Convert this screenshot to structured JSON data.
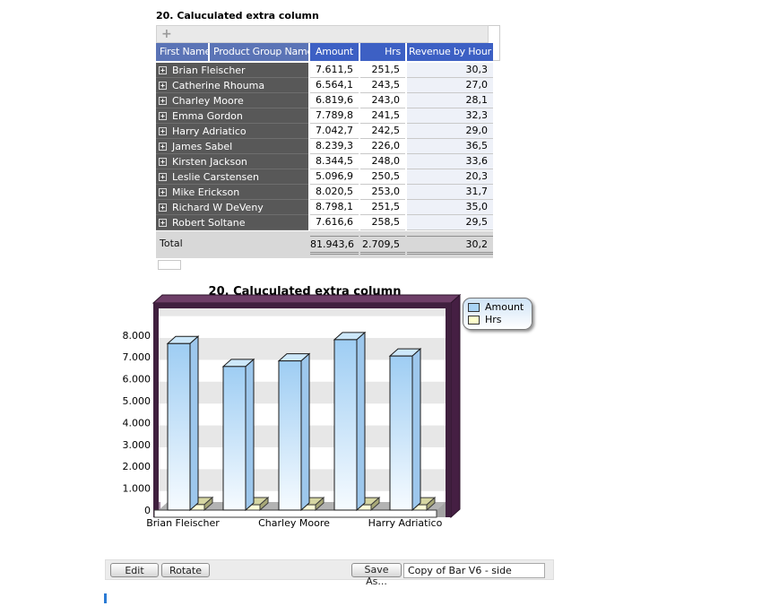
{
  "report": {
    "title": "20. Caluculated extra column",
    "table": {
      "add_icon": "+",
      "expand_icon": "+",
      "headers": [
        "First Name",
        "Product Group Name",
        "Amount",
        "Hrs",
        "Revenue by Hour"
      ],
      "rows": [
        {
          "name": "Brian Fleischer",
          "amount": "7.611,5",
          "hrs": "251,5",
          "revenue": "30,3"
        },
        {
          "name": "Catherine Rhouma",
          "amount": "6.564,1",
          "hrs": "243,5",
          "revenue": "27,0"
        },
        {
          "name": "Charley Moore",
          "amount": "6.819,6",
          "hrs": "243,0",
          "revenue": "28,1"
        },
        {
          "name": "Emma Gordon",
          "amount": "7.789,8",
          "hrs": "241,5",
          "revenue": "32,3"
        },
        {
          "name": "Harry Adriatico",
          "amount": "7.042,7",
          "hrs": "242,5",
          "revenue": "29,0"
        },
        {
          "name": "James Sabel",
          "amount": "8.239,3",
          "hrs": "226,0",
          "revenue": "36,5"
        },
        {
          "name": "Kirsten Jackson",
          "amount": "8.344,5",
          "hrs": "248,0",
          "revenue": "33,6"
        },
        {
          "name": "Leslie Carstensen",
          "amount": "5.096,9",
          "hrs": "250,5",
          "revenue": "20,3"
        },
        {
          "name": "Mike Erickson",
          "amount": "8.020,5",
          "hrs": "253,0",
          "revenue": "31,7"
        },
        {
          "name": "Richard W DeVeny",
          "amount": "8.798,1",
          "hrs": "251,5",
          "revenue": "35,0"
        },
        {
          "name": "Robert Soltane",
          "amount": "7.616,6",
          "hrs": "258,5",
          "revenue": "29,5"
        }
      ],
      "total": {
        "label": "Total",
        "amount": "81.943,6",
        "hrs": "2.709,5",
        "revenue": "30,2"
      }
    },
    "colors": {
      "header_name_bg": "#5b74b6",
      "header_value_bg": "#3d60c4",
      "row_name_bg": "#585858",
      "revenue_column_bg": "#eef1f8",
      "total_bg": "#d8d8d8"
    }
  },
  "chart_data": {
    "type": "bar",
    "title": "20. Caluculated extra column",
    "categories": [
      "Brian Fleischer",
      "Catherine Rhouma",
      "Charley Moore",
      "Emma Gordon",
      "Harry Adriatico"
    ],
    "x_label_indices": [
      0,
      2,
      4
    ],
    "series": [
      {
        "name": "Amount",
        "color": "#a9d3f5",
        "values": [
          7611.5,
          6564.1,
          6819.6,
          7789.8,
          7042.7
        ]
      },
      {
        "name": "Hrs",
        "color": "#ffffcc",
        "values": [
          251.5,
          243.5,
          243.0,
          241.5,
          242.5
        ]
      }
    ],
    "ylim": [
      0,
      9000
    ],
    "yticks": [
      0,
      1000,
      2000,
      3000,
      4000,
      5000,
      6000,
      7000,
      8000
    ],
    "ytick_labels": [
      "0",
      "1.000",
      "2.000",
      "3.000",
      "4.000",
      "5.000",
      "6.000",
      "7.000",
      "8.000"
    ],
    "legend_position": "top-right",
    "style": {
      "frame_color": "#40203f",
      "wall_band_color": "#e7e7e7",
      "grid": false,
      "projection": "3d"
    }
  },
  "bottom_toolbar": {
    "edit": "Edit",
    "rotate": "Rotate",
    "save_as": "Save As...",
    "filename": "Copy of Bar V6 - side"
  }
}
